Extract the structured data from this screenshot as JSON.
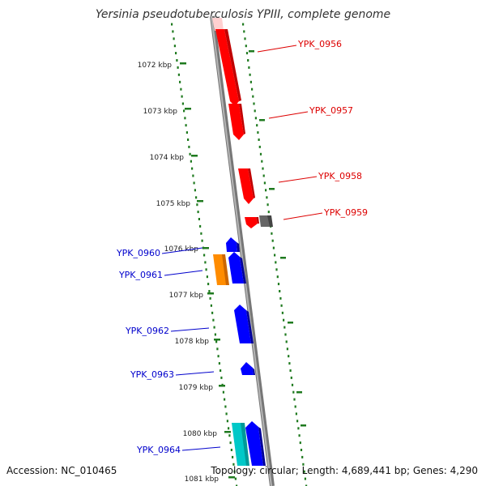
{
  "title": "Yersinia pseudotuberculosis YPIII, complete genome",
  "footer": {
    "accession": "Accession: NC_010465",
    "summary": "Topology: circular; Length: 4,689,441 bp; Genes: 4,290"
  },
  "colors": {
    "backbone": "#8a8a8a",
    "ticks": "#1f7a1f",
    "red": "#ff0000",
    "pink": "#ffd0d0",
    "blue": "#0000ff",
    "orange": "#ff8c00",
    "cyan": "#00c8c8",
    "gray": "#666666",
    "label_red": "#dd0000",
    "label_blue": "#0000cc"
  },
  "kbp_labels": [
    "1072 kbp",
    "1073 kbp",
    "1074 kbp",
    "1075 kbp",
    "1076 kbp",
    "1077 kbp",
    "1078 kbp",
    "1079 kbp",
    "1080 kbp",
    "1081 kbp"
  ],
  "gene_labels": {
    "right": [
      "YPK_0956",
      "YPK_0957",
      "YPK_0958",
      "YPK_0959"
    ],
    "left": [
      "YPK_0960",
      "YPK_0961",
      "YPK_0962",
      "YPK_0963",
      "YPK_0964"
    ]
  }
}
